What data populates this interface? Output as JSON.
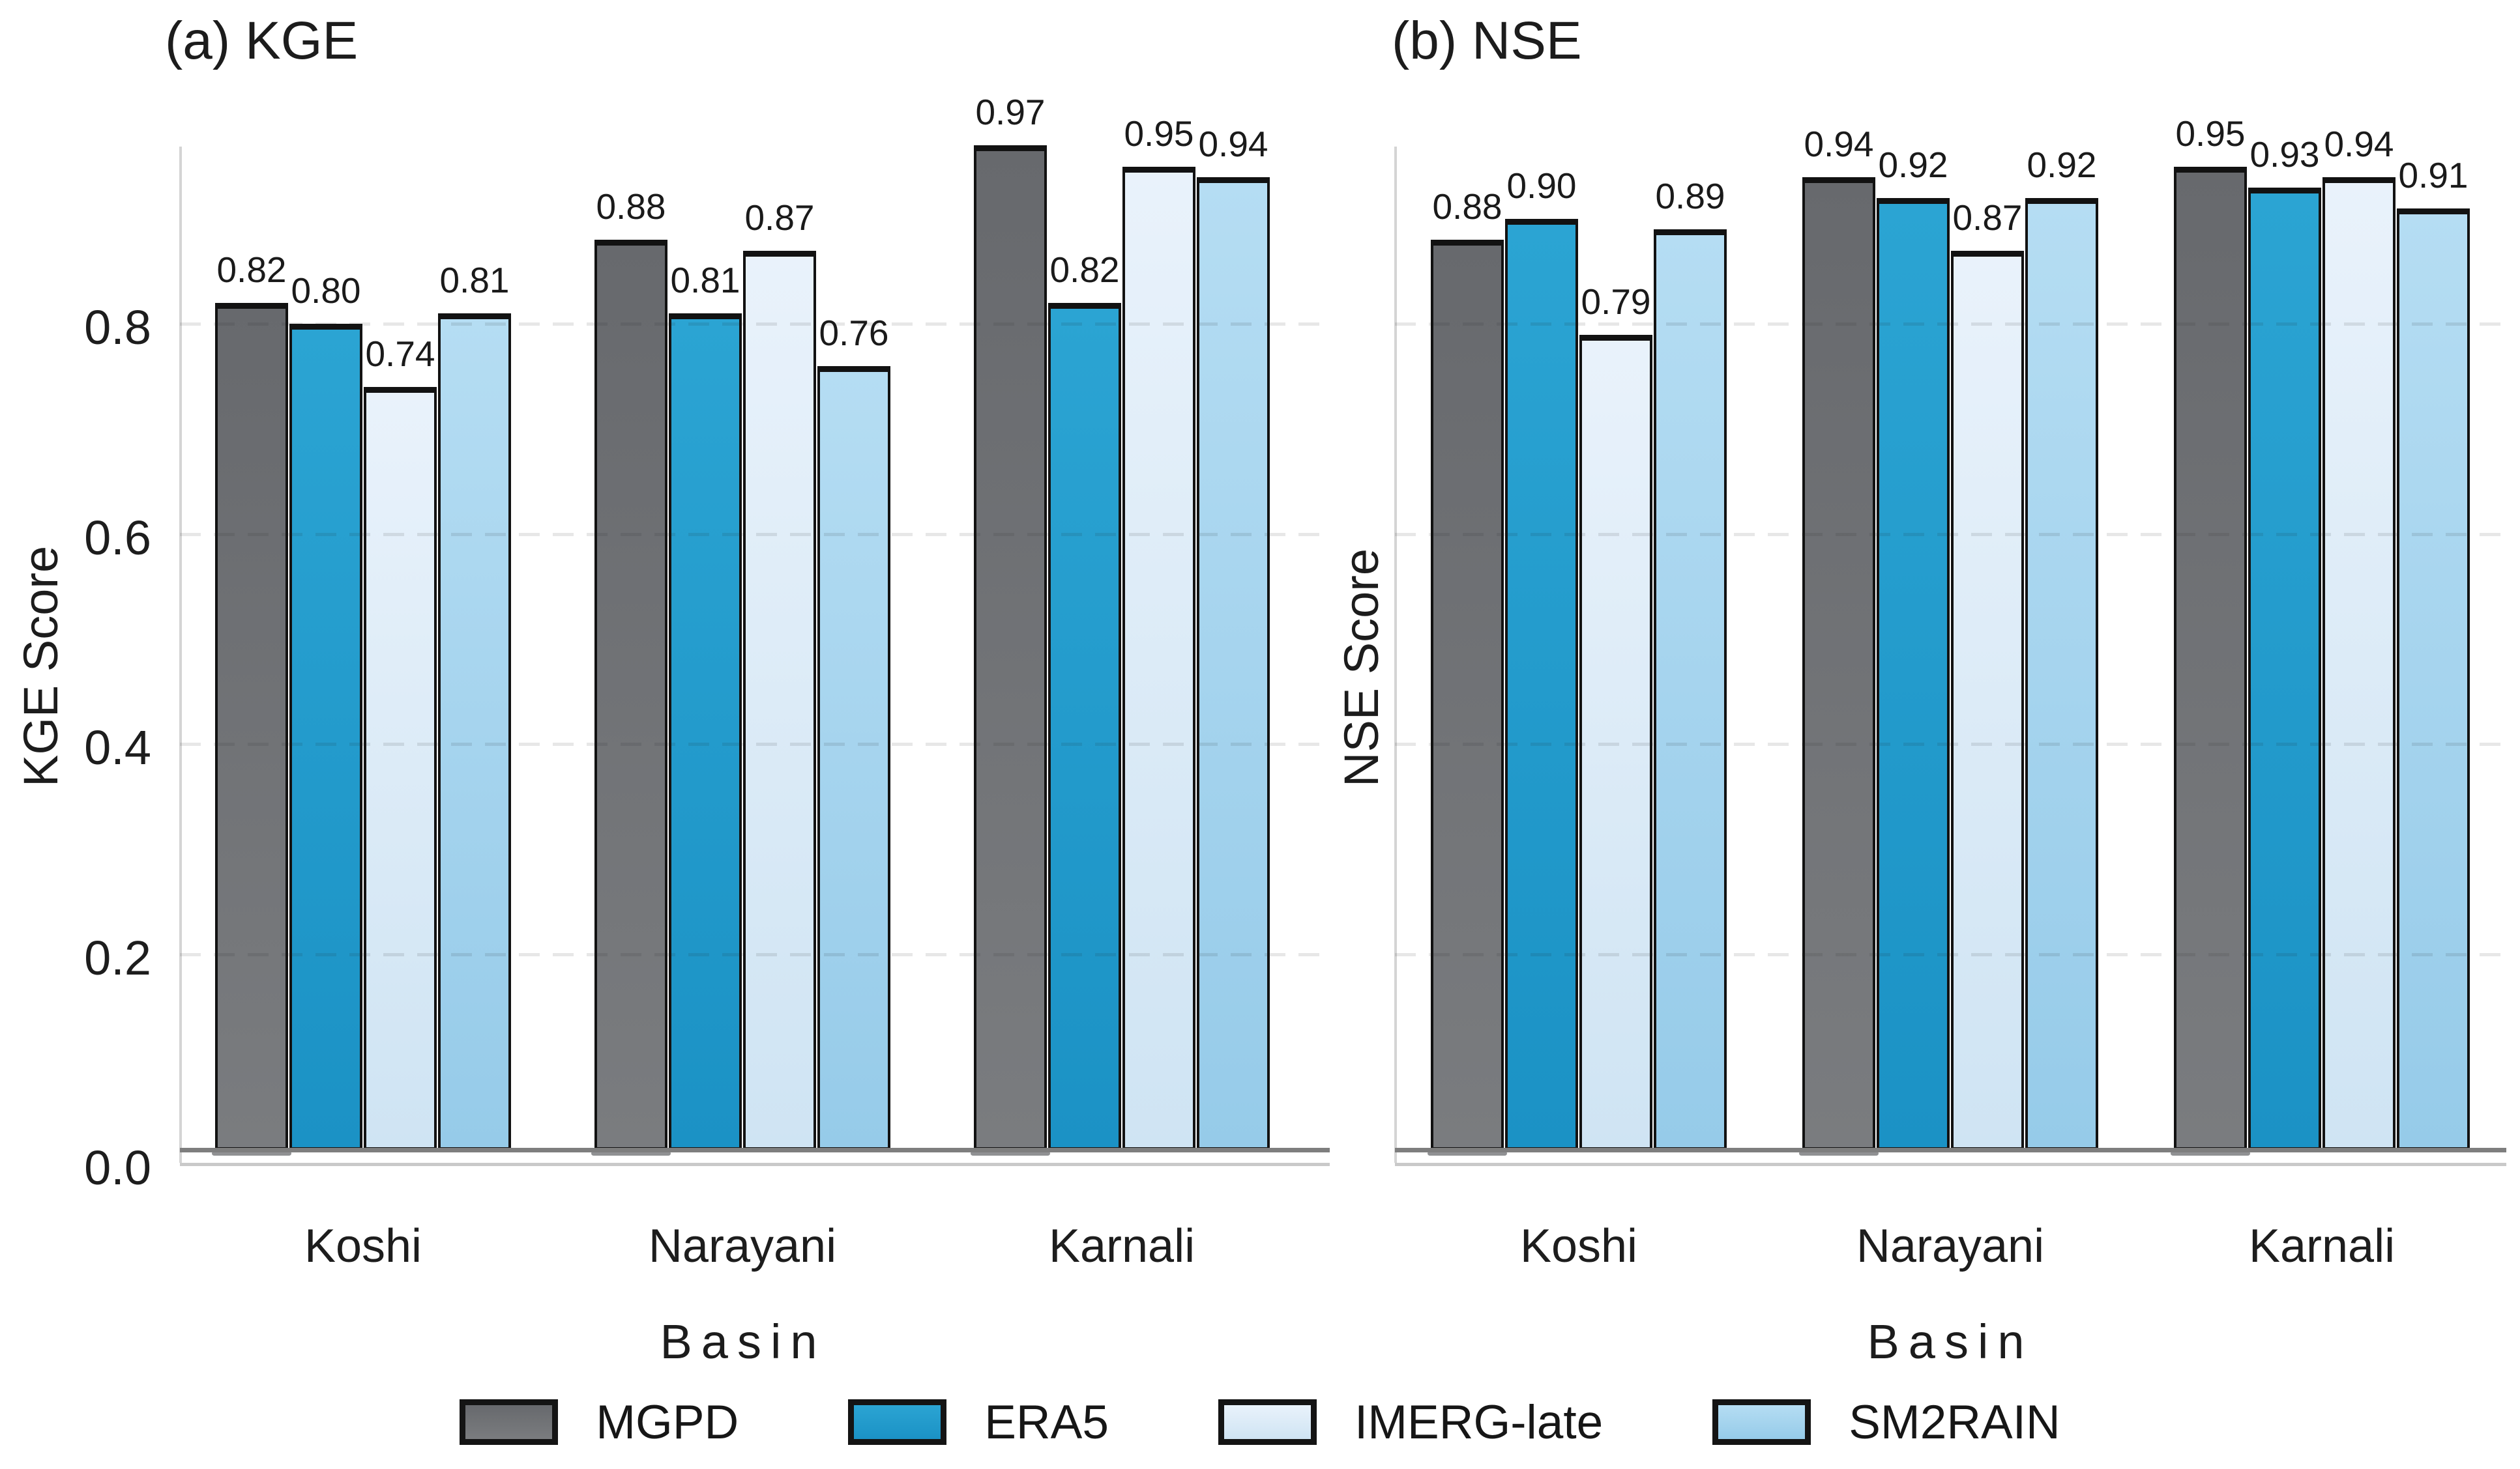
{
  "style": {
    "background": "#ffffff",
    "text_color": "#1a1a1a",
    "bar_edge_color": "#121212",
    "grid_color": "rgba(30,30,30,0.105)",
    "baseline_color": "#7e7e7e",
    "spine_vertical_color": "#d4d4d4",
    "spine_horizontal_color": "#c9c9c9"
  },
  "axes": {
    "ytick_labels": [
      "0.0",
      "0.2",
      "0.4",
      "0.6",
      "0.8"
    ],
    "ytick_values": [
      0.0,
      0.2,
      0.4,
      0.6,
      0.8
    ],
    "grid_values": [
      0.2,
      0.4,
      0.6,
      0.8
    ]
  },
  "chart_data": [
    {
      "type": "bar",
      "title": "(a) KGE",
      "ylabel": "KGE Score",
      "xlabel": "Basin",
      "categories": [
        "Koshi",
        "Narayani",
        "Karnali"
      ],
      "ylim": [
        0.0,
        1.0
      ],
      "grid": "horizontal-dashed",
      "ytick_labels_visible": true,
      "value_label_format": "2dp",
      "series": [
        {
          "name": "MGPD",
          "values": [
            0.82,
            0.88,
            0.97
          ]
        },
        {
          "name": "ERA5",
          "values": [
            0.8,
            0.81,
            0.82
          ]
        },
        {
          "name": "IMERG-late",
          "values": [
            0.74,
            0.87,
            0.95
          ]
        },
        {
          "name": "SM2RAIN",
          "values": [
            0.81,
            0.76,
            0.94
          ]
        }
      ]
    },
    {
      "type": "bar",
      "title": "(b) NSE",
      "ylabel": "NSE Score",
      "xlabel": "Basin",
      "categories": [
        "Koshi",
        "Narayani",
        "Karnali"
      ],
      "ylim": [
        0.0,
        1.0
      ],
      "grid": "horizontal-dashed",
      "ytick_labels_visible": false,
      "value_label_format": "2dp",
      "series": [
        {
          "name": "MGPD",
          "values": [
            0.88,
            0.94,
            0.95
          ]
        },
        {
          "name": "ERA5",
          "values": [
            0.9,
            0.92,
            0.93
          ]
        },
        {
          "name": "IMERG-late",
          "values": [
            0.79,
            0.87,
            0.94
          ]
        },
        {
          "name": "SM2RAIN",
          "values": [
            0.89,
            0.92,
            0.91
          ]
        }
      ]
    }
  ],
  "series_colors": [
    {
      "name": "MGPD",
      "fill_top": "#67696d",
      "fill_bottom": "#7a7c7f",
      "legend_fill": "#6e7073"
    },
    {
      "name": "ERA5",
      "fill_top": "#2ba4d3",
      "fill_bottom": "#1b92c5",
      "legend_fill": "#2097ca"
    },
    {
      "name": "IMERG-late",
      "fill_top": "#e9f2fb",
      "fill_bottom": "#cfe4f3",
      "legend_fill": "#dcebf8"
    },
    {
      "name": "SM2RAIN",
      "fill_top": "#b5ddf3",
      "fill_bottom": "#96cbe9",
      "legend_fill": "#a6d5f0"
    }
  ],
  "legend": {
    "items": [
      {
        "label": "MGPD"
      },
      {
        "label": "ERA5"
      },
      {
        "label": "IMERG-late"
      },
      {
        "label": "SM2RAIN"
      }
    ]
  }
}
